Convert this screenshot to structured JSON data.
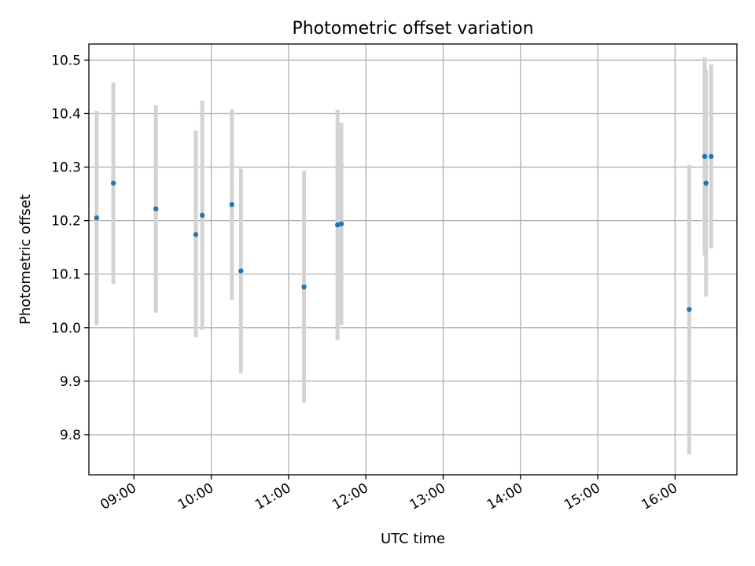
{
  "chart_data": {
    "type": "scatter",
    "title": "Photometric offset variation",
    "xlabel": "UTC time",
    "ylabel": "Photometric offset",
    "x_axis_type": "time",
    "xlim": [
      "08:25",
      "16:48"
    ],
    "ylim": [
      9.725,
      10.53
    ],
    "x_ticks": [
      "09:00",
      "10:00",
      "11:00",
      "12:00",
      "13:00",
      "14:00",
      "15:00",
      "16:00"
    ],
    "y_ticks": [
      "9.8",
      "9.9",
      "10.0",
      "10.1",
      "10.2",
      "10.3",
      "10.4",
      "10.5"
    ],
    "grid": true,
    "marker_color": "#1f77b4",
    "errorbar_color": "#d3d3d3",
    "points": [
      {
        "time": "08:31",
        "y": 10.205,
        "ylow": 10.005,
        "yhigh": 10.405
      },
      {
        "time": "08:44",
        "y": 10.27,
        "ylow": 10.082,
        "yhigh": 10.458
      },
      {
        "time": "09:17",
        "y": 10.222,
        "ylow": 10.028,
        "yhigh": 10.416
      },
      {
        "time": "09:48",
        "y": 10.174,
        "ylow": 9.982,
        "yhigh": 10.368
      },
      {
        "time": "09:53",
        "y": 10.21,
        "ylow": 9.996,
        "yhigh": 10.424
      },
      {
        "time": "10:16",
        "y": 10.23,
        "ylow": 10.052,
        "yhigh": 10.408
      },
      {
        "time": "10:23",
        "y": 10.106,
        "ylow": 9.915,
        "yhigh": 10.297
      },
      {
        "time": "11:12",
        "y": 10.076,
        "ylow": 9.86,
        "yhigh": 10.293
      },
      {
        "time": "11:38",
        "y": 10.192,
        "ylow": 9.977,
        "yhigh": 10.407
      },
      {
        "time": "11:41",
        "y": 10.194,
        "ylow": 10.005,
        "yhigh": 10.383
      },
      {
        "time": "16:11",
        "y": 10.034,
        "ylow": 9.763,
        "yhigh": 10.304
      },
      {
        "time": "16:23",
        "y": 10.32,
        "ylow": 10.135,
        "yhigh": 10.505
      },
      {
        "time": "16:24",
        "y": 10.27,
        "ylow": 10.058,
        "yhigh": 10.482
      },
      {
        "time": "16:28",
        "y": 10.32,
        "ylow": 10.148,
        "yhigh": 10.492
      }
    ]
  }
}
